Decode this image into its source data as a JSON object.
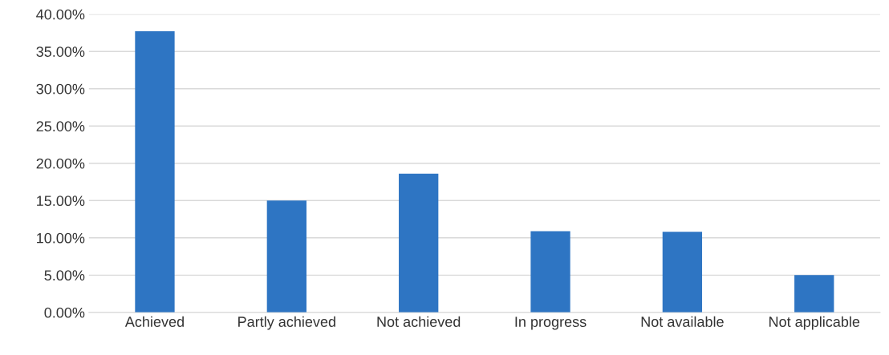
{
  "chart_data": {
    "type": "bar",
    "categories": [
      "Achieved",
      "Partly achieved",
      "Not achieved",
      "In progress",
      "Not available",
      "Not applicable"
    ],
    "values": [
      37.7,
      15.0,
      18.6,
      10.9,
      10.8,
      5.0
    ],
    "color": "#2e75c3",
    "ylim": [
      0,
      40
    ],
    "yticks": [
      {
        "value": 0,
        "label": "0.00%"
      },
      {
        "value": 5,
        "label": "5.00%"
      },
      {
        "value": 10,
        "label": "10.00%"
      },
      {
        "value": 15,
        "label": "15.00%"
      },
      {
        "value": 20,
        "label": "20.00%"
      },
      {
        "value": 25,
        "label": "25.00%"
      },
      {
        "value": 30,
        "label": "30.00%"
      },
      {
        "value": 35,
        "label": "35.00%"
      },
      {
        "value": 40,
        "label": "40.00%"
      }
    ],
    "grid": "y"
  }
}
